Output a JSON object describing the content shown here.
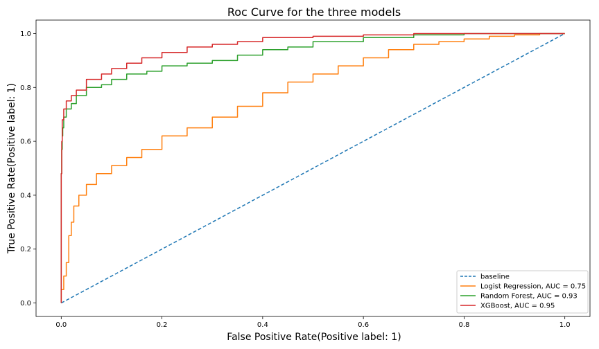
{
  "chart_data": {
    "type": "line",
    "title": "Roc Curve for the three models",
    "xlabel": "False Positive Rate(Positive label: 1)",
    "ylabel": "True Positive Rate(Positive label: 1)",
    "xlim": [
      -0.05,
      1.05
    ],
    "ylim": [
      -0.05,
      1.05
    ],
    "xticks": [
      0.0,
      0.2,
      0.4,
      0.6,
      0.8,
      1.0
    ],
    "yticks": [
      0.0,
      0.2,
      0.4,
      0.6,
      0.8,
      1.0
    ],
    "xtick_labels": [
      "0.0",
      "0.2",
      "0.4",
      "0.6",
      "0.8",
      "1.0"
    ],
    "ytick_labels": [
      "0.0",
      "0.2",
      "0.4",
      "0.6",
      "0.8",
      "1.0"
    ],
    "grid": false,
    "legend_position": "lower-right",
    "series": [
      {
        "name": "baseline",
        "color": "#1f77b4",
        "style": "dashed",
        "points": [
          [
            0,
            0
          ],
          [
            1,
            1
          ]
        ]
      },
      {
        "name": "Logist Regression, AUC = 0.75",
        "color": "#ff7f0e",
        "style": "solid",
        "points": [
          [
            0,
            0
          ],
          [
            0.005,
            0.05
          ],
          [
            0.01,
            0.1
          ],
          [
            0.015,
            0.15
          ],
          [
            0.02,
            0.25
          ],
          [
            0.025,
            0.3
          ],
          [
            0.035,
            0.36
          ],
          [
            0.05,
            0.4
          ],
          [
            0.07,
            0.44
          ],
          [
            0.1,
            0.48
          ],
          [
            0.13,
            0.51
          ],
          [
            0.16,
            0.54
          ],
          [
            0.2,
            0.57
          ],
          [
            0.25,
            0.62
          ],
          [
            0.3,
            0.65
          ],
          [
            0.35,
            0.69
          ],
          [
            0.4,
            0.73
          ],
          [
            0.45,
            0.78
          ],
          [
            0.5,
            0.82
          ],
          [
            0.55,
            0.85
          ],
          [
            0.6,
            0.88
          ],
          [
            0.65,
            0.91
          ],
          [
            0.7,
            0.94
          ],
          [
            0.75,
            0.96
          ],
          [
            0.8,
            0.97
          ],
          [
            0.85,
            0.98
          ],
          [
            0.9,
            0.99
          ],
          [
            0.95,
            0.995
          ],
          [
            1,
            1
          ]
        ]
      },
      {
        "name": "Random Forest, AUC = 0.93",
        "color": "#2ca02c",
        "style": "solid",
        "points": [
          [
            0,
            0
          ],
          [
            0.001,
            0.48
          ],
          [
            0.002,
            0.57
          ],
          [
            0.003,
            0.62
          ],
          [
            0.005,
            0.65
          ],
          [
            0.01,
            0.69
          ],
          [
            0.02,
            0.72
          ],
          [
            0.03,
            0.74
          ],
          [
            0.05,
            0.77
          ],
          [
            0.08,
            0.8
          ],
          [
            0.1,
            0.81
          ],
          [
            0.13,
            0.83
          ],
          [
            0.17,
            0.85
          ],
          [
            0.2,
            0.86
          ],
          [
            0.25,
            0.88
          ],
          [
            0.3,
            0.89
          ],
          [
            0.35,
            0.9
          ],
          [
            0.4,
            0.92
          ],
          [
            0.45,
            0.94
          ],
          [
            0.5,
            0.95
          ],
          [
            0.6,
            0.97
          ],
          [
            0.7,
            0.985
          ],
          [
            0.8,
            0.995
          ],
          [
            0.9,
            1
          ],
          [
            1,
            1
          ]
        ]
      },
      {
        "name": "XGBoost, AUC = 0.95",
        "color": "#d62728",
        "style": "solid",
        "points": [
          [
            0,
            0
          ],
          [
            0.001,
            0.48
          ],
          [
            0.002,
            0.6
          ],
          [
            0.005,
            0.68
          ],
          [
            0.01,
            0.72
          ],
          [
            0.02,
            0.75
          ],
          [
            0.03,
            0.77
          ],
          [
            0.05,
            0.79
          ],
          [
            0.08,
            0.83
          ],
          [
            0.1,
            0.85
          ],
          [
            0.13,
            0.87
          ],
          [
            0.16,
            0.89
          ],
          [
            0.2,
            0.91
          ],
          [
            0.25,
            0.93
          ],
          [
            0.3,
            0.95
          ],
          [
            0.35,
            0.96
          ],
          [
            0.4,
            0.97
          ],
          [
            0.5,
            0.985
          ],
          [
            0.6,
            0.99
          ],
          [
            0.7,
            0.995
          ],
          [
            0.8,
            1
          ],
          [
            1,
            1
          ]
        ]
      }
    ]
  }
}
